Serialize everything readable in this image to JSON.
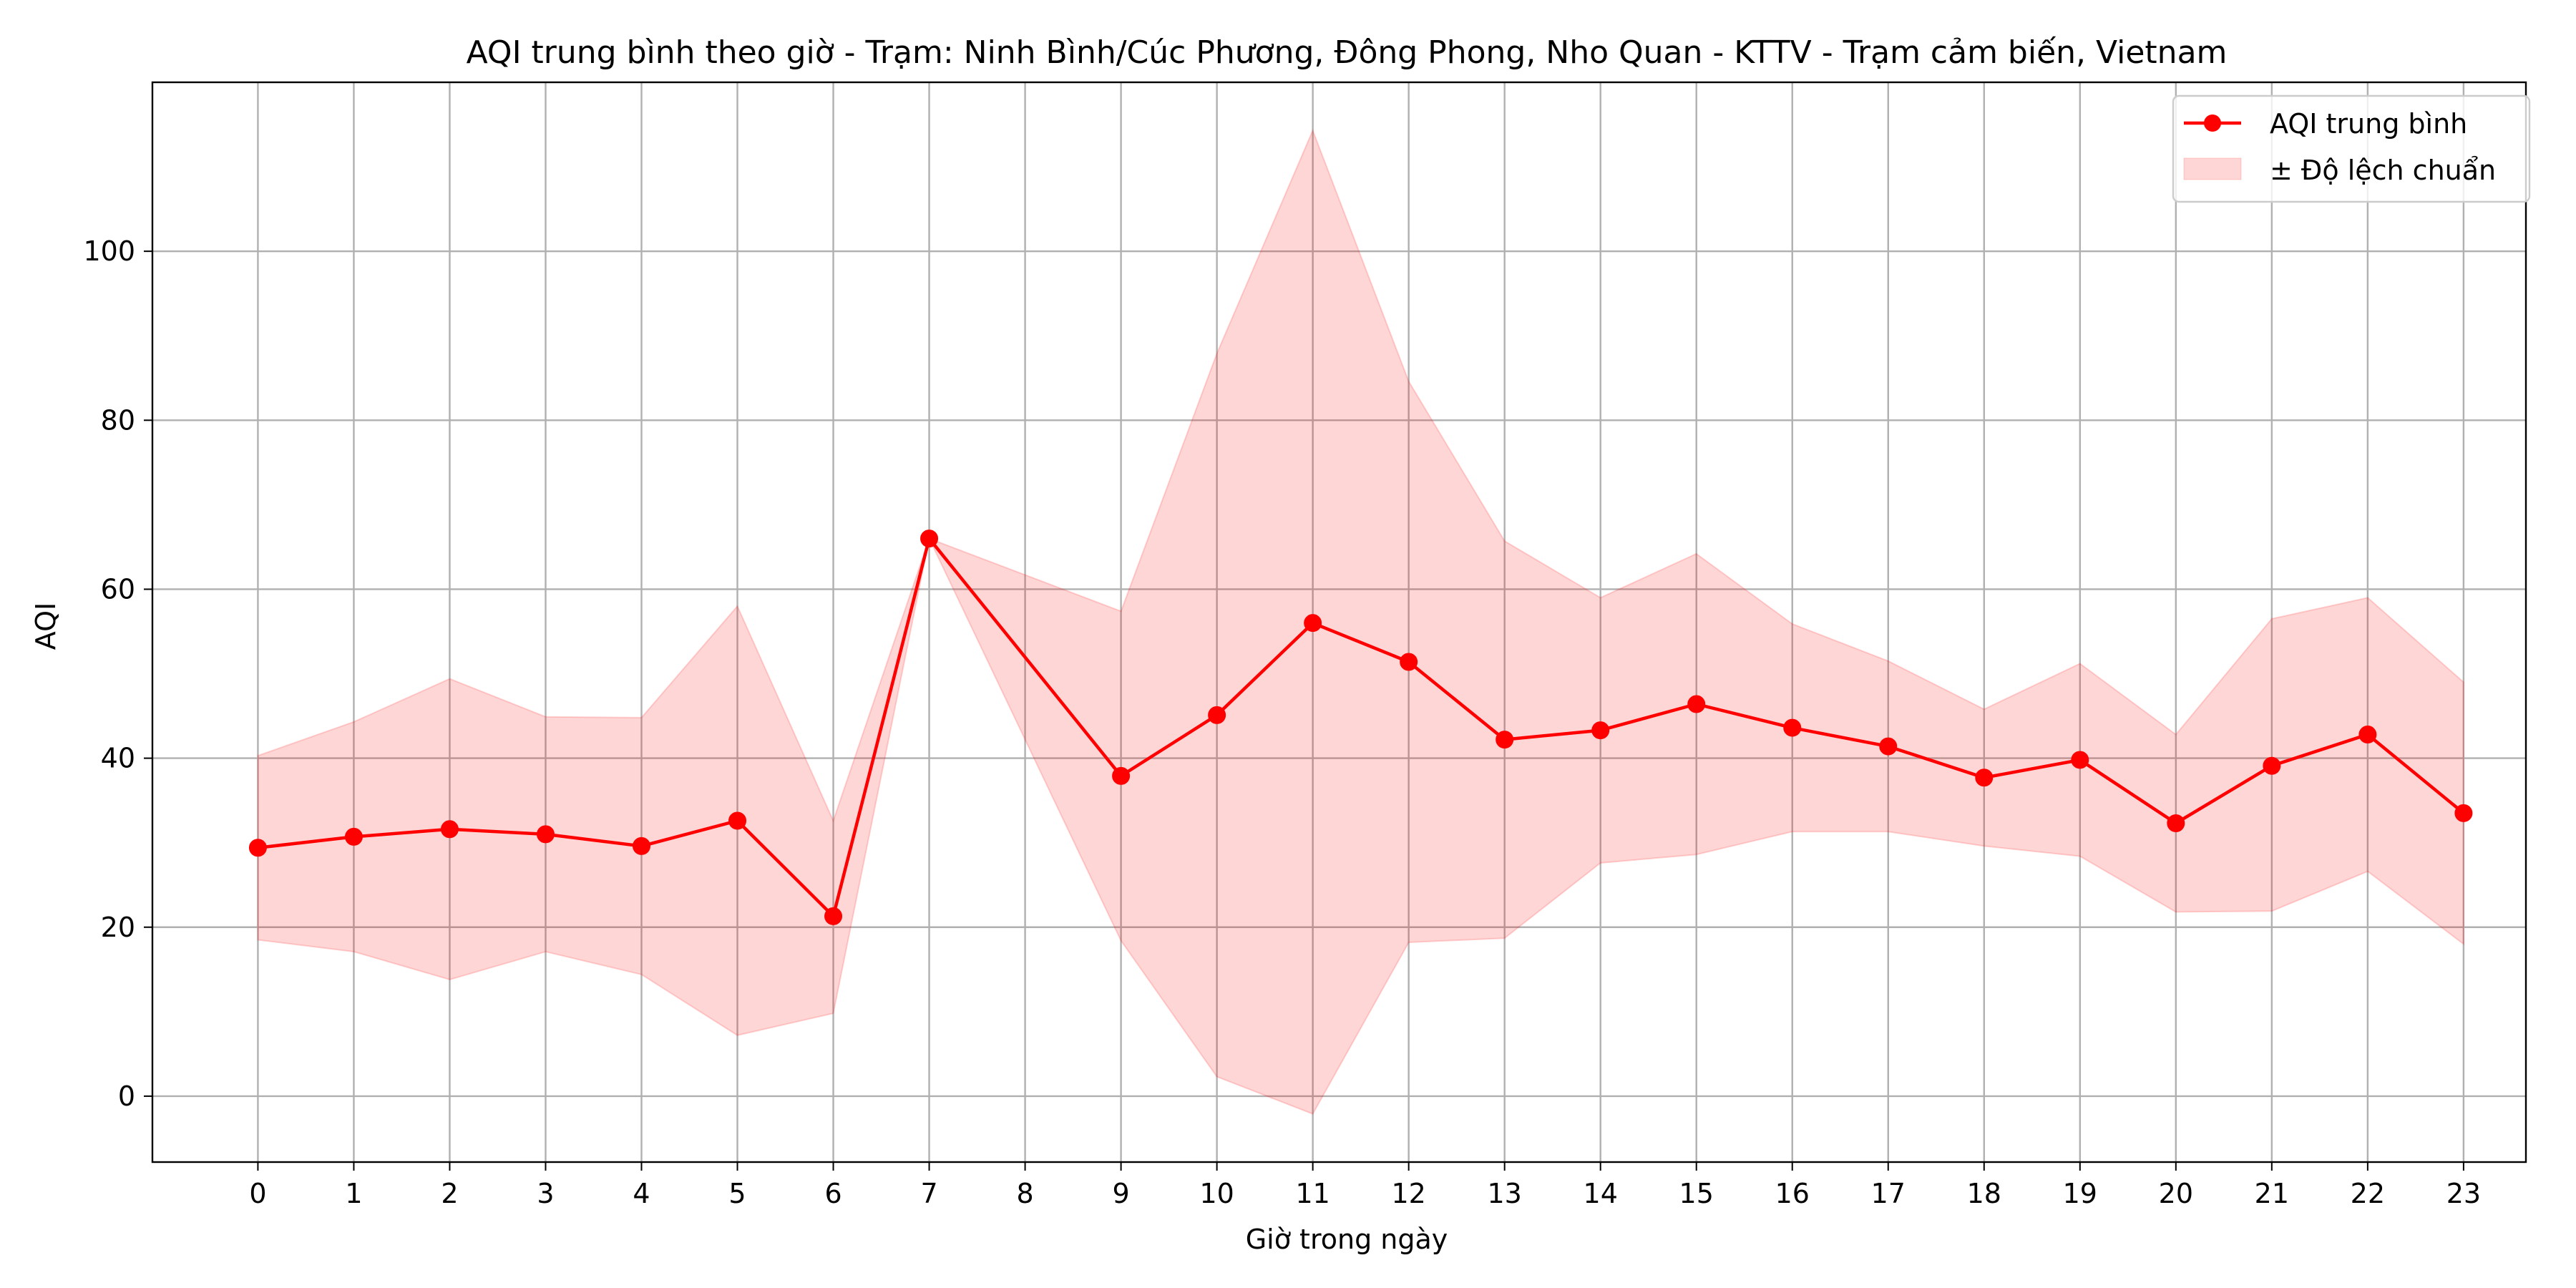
{
  "chart_data": {
    "type": "line",
    "title": "AQI trung bình theo giờ - Trạm: Ninh Bình/Cúc Phương, Đông Phong, Nho Quan - KTTV - Trạm cảm biến, Vietnam",
    "xlabel": "Giờ trong ngày",
    "ylabel": "AQI",
    "x": [
      0,
      1,
      2,
      3,
      4,
      5,
      6,
      7,
      9,
      10,
      11,
      12,
      13,
      14,
      15,
      16,
      17,
      18,
      19,
      20,
      21,
      22,
      23
    ],
    "x_ticks": [
      0,
      1,
      2,
      3,
      4,
      5,
      6,
      7,
      8,
      9,
      10,
      11,
      12,
      13,
      14,
      15,
      16,
      17,
      18,
      19,
      20,
      21,
      22,
      23
    ],
    "xlim": [
      -1.1,
      23.65
    ],
    "ylim": [
      -7.8,
      120
    ],
    "y_ticks": [
      0,
      20,
      40,
      60,
      80,
      100
    ],
    "grid": true,
    "legend_position": "top-right",
    "series": [
      {
        "name": "AQI trung bình",
        "color": "#ff0000",
        "marker": "circle",
        "values": [
          29.4,
          30.7,
          31.6,
          31.0,
          29.6,
          32.6,
          21.3,
          66.0,
          37.9,
          45.1,
          56.0,
          51.4,
          42.2,
          43.3,
          46.4,
          43.6,
          41.4,
          37.7,
          39.8,
          32.3,
          39.1,
          42.8,
          33.5
        ]
      },
      {
        "name": "± Độ lệch chuẩn",
        "type": "area",
        "color": "#ff0000",
        "opacity": 0.16,
        "upper": [
          40.3,
          44.3,
          49.4,
          44.9,
          44.8,
          58.0,
          32.6,
          66.0,
          57.4,
          87.9,
          114.3,
          84.6,
          65.7,
          59.0,
          64.2,
          55.9,
          51.5,
          45.8,
          51.2,
          42.8,
          56.5,
          59.0,
          49.0
        ],
        "lower": [
          18.5,
          17.1,
          13.8,
          17.1,
          14.4,
          7.2,
          9.8,
          66.0,
          18.4,
          2.3,
          -2.1,
          18.2,
          18.7,
          27.6,
          28.6,
          31.3,
          31.3,
          29.6,
          28.4,
          21.8,
          21.9,
          26.6,
          18.0
        ]
      }
    ]
  }
}
